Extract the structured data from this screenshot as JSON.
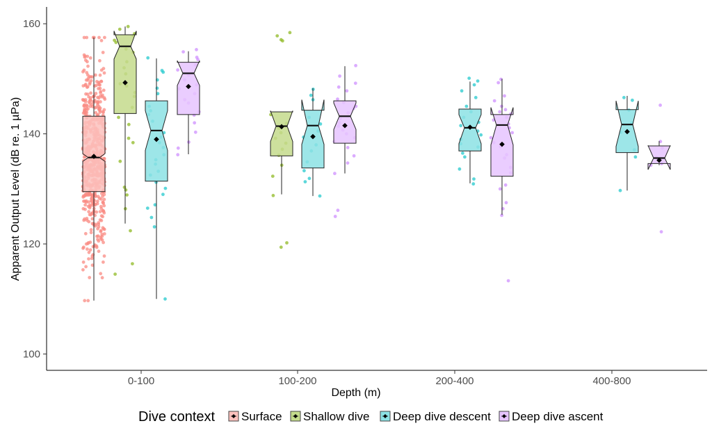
{
  "chart_data": {
    "type": "boxplot",
    "xlabel": "Depth (m)",
    "ylabel": "Apparent Output Level (dB re. 1 µPa)",
    "ylim": [
      97,
      163
    ],
    "yticks": [
      100,
      120,
      140,
      160
    ],
    "categories": [
      "0-100",
      "100-200",
      "200-400",
      "400-800"
    ],
    "grid": false,
    "legend": {
      "title": "Dive context",
      "position": "bottom",
      "entries": [
        "Surface",
        "Shallow dive",
        "Deep dive descent",
        "Deep dive ascent"
      ]
    },
    "colors": {
      "Surface": "#F8766D",
      "Shallow dive": "#7CAE00",
      "Deep dive descent": "#00BFC4",
      "Deep dive ascent": "#C77CFF"
    },
    "boxes": [
      {
        "category": "0-100",
        "series": "Surface",
        "whisker_low": 109.7,
        "q1": 129.5,
        "median": 135.7,
        "q3": 143.2,
        "whisker_high": 157.5,
        "mean": 135.9,
        "notch_low": 135.0,
        "notch_high": 136.4
      },
      {
        "category": "0-100",
        "series": "Shallow dive",
        "whisker_low": 123.7,
        "q1": 143.7,
        "median": 155.9,
        "q3": 158.0,
        "whisker_high": 159.5,
        "mean": 149.3,
        "notch_low": 153.6,
        "notch_high": 158.7
      },
      {
        "category": "0-100",
        "series": "Deep dive descent",
        "whisker_low": 110.0,
        "q1": 131.4,
        "median": 140.6,
        "q3": 146.0,
        "whisker_high": 153.7,
        "mean": 139.0,
        "notch_low": 137.0,
        "notch_high": 144.2
      },
      {
        "category": "0-100",
        "series": "Deep dive ascent",
        "whisker_low": 136.3,
        "q1": 143.5,
        "median": 151.0,
        "q3": 153.0,
        "whisker_high": 155.0,
        "mean": 148.6,
        "notch_low": 148.8,
        "notch_high": 153.3
      },
      {
        "category": "100-200",
        "series": "Shallow dive",
        "whisker_low": 129.0,
        "q1": 136.0,
        "median": 141.4,
        "q3": 144.0,
        "whisker_high": 144.0,
        "mean": 141.3,
        "notch_low": 138.6,
        "notch_high": 144.2
      },
      {
        "category": "100-200",
        "series": "Deep dive descent",
        "whisker_low": 128.7,
        "q1": 133.8,
        "median": 141.5,
        "q3": 144.3,
        "whisker_high": 148.3,
        "mean": 139.5,
        "notch_low": 138.1,
        "notch_high": 146.2
      },
      {
        "category": "100-200",
        "series": "Deep dive ascent",
        "whisker_low": 132.8,
        "q1": 138.3,
        "median": 143.2,
        "q3": 146.0,
        "whisker_high": 152.3,
        "mean": 141.5,
        "notch_low": 140.8,
        "notch_high": 145.6
      },
      {
        "category": "200-400",
        "series": "Deep dive descent",
        "whisker_low": 131.0,
        "q1": 136.9,
        "median": 141.1,
        "q3": 144.5,
        "whisker_high": 149.5,
        "mean": 141.2,
        "notch_low": 138.2,
        "notch_high": 143.5
      },
      {
        "category": "200-400",
        "series": "Deep dive ascent",
        "whisker_low": 125.3,
        "q1": 132.3,
        "median": 141.6,
        "q3": 143.5,
        "whisker_high": 150.0,
        "mean": 138.1,
        "notch_low": 138.0,
        "notch_high": 144.8
      },
      {
        "category": "400-800",
        "series": "Deep dive descent",
        "whisker_low": 129.7,
        "q1": 136.6,
        "median": 141.7,
        "q3": 144.4,
        "whisker_high": 146.9,
        "mean": 140.4,
        "notch_low": 137.7,
        "notch_high": 146.0
      },
      {
        "category": "400-800",
        "series": "Deep dive ascent",
        "whisker_low": 134.3,
        "q1": 134.6,
        "median": 135.6,
        "q3": 137.8,
        "whisker_high": 138.7,
        "mean": 135.2,
        "notch_low": 133.5,
        "notch_high": 137.9
      }
    ],
    "points": {
      "0-100|Shallow dive": [
        159.5,
        159.0,
        158.2,
        157.8,
        157.0,
        156.6,
        155.4,
        154.8,
        153.1,
        152.0,
        150.9,
        149.1,
        148.7,
        147.5,
        146.8,
        144.8,
        143.0,
        141.7,
        139.2,
        138.4,
        135.0,
        130.3,
        129.8,
        128.9,
        126.4,
        122.4,
        116.4,
        114.5
      ],
      "0-100|Deep dive descent": [
        153.8,
        151.5,
        151.2,
        149.8,
        148.3,
        147.3,
        145.0,
        144.2,
        143.5,
        142.3,
        140.2,
        139.4,
        138.4,
        137.5,
        136.2,
        135.3,
        134.5,
        133.2,
        132.5,
        131.2,
        130.1,
        129.0,
        127.1,
        126.5,
        124.8,
        123.1,
        110.0
      ],
      "0-100|Deep dive ascent": [
        155.3,
        154.9,
        153.9,
        153.5,
        152.5,
        151.6,
        150.7,
        149.8,
        148.9,
        148.2,
        147.3,
        146.2,
        145.6,
        144.0,
        143.4,
        142.0,
        140.3,
        138.5,
        137.4,
        136.2
      ],
      "100-200|Shallow dive": [
        158.4,
        157.8,
        157.1,
        156.9,
        143.5,
        141.9,
        141.0,
        140.2,
        139.2,
        138.3,
        137.2,
        136.1,
        134.3,
        132.3,
        128.8,
        120.2,
        119.4
      ],
      "100-200|Deep dive descent": [
        148.1,
        147.0,
        146.2,
        143.0,
        141.8,
        140.5,
        139.4,
        138.0,
        136.9,
        134.9,
        133.3,
        131.9,
        131.3,
        128.7
      ],
      "100-200|Deep dive ascent": [
        152.4,
        150.5,
        149.2,
        148.5,
        147.8,
        146.3,
        145.7,
        145.0,
        144.6,
        143.8,
        142.8,
        142.0,
        141.4,
        140.7,
        140.0,
        139.3,
        138.6,
        137.5,
        136.0,
        134.7,
        132.8,
        126.1,
        125.0
      ],
      "200-400|Deep dive descent": [
        150.1,
        149.6,
        148.9,
        147.8,
        146.6,
        145.0,
        144.0,
        143.0,
        142.1,
        141.5,
        140.5,
        139.8,
        139.0,
        138.2,
        137.6,
        136.5,
        135.8,
        133.6,
        131.8,
        130.9
      ],
      "200-400|Deep dive ascent": [
        149.9,
        149.3,
        146.9,
        146.0,
        145.0,
        144.4,
        144.0,
        143.6,
        143.0,
        142.5,
        141.8,
        141.1,
        140.2,
        139.3,
        138.4,
        137.7,
        136.2,
        135.6,
        133.9,
        132.9,
        130.7,
        130.0,
        127.5,
        126.4,
        125.2,
        113.3
      ],
      "400-800|Deep dive descent": [
        146.6,
        146.1,
        144.3,
        142.0,
        140.3,
        137.1,
        135.8,
        129.7
      ],
      "400-800|Deep dive ascent": [
        145.2,
        138.6,
        137.4,
        135.7,
        134.6,
        134.3,
        122.2
      ]
    },
    "surface_point_count": 600
  }
}
